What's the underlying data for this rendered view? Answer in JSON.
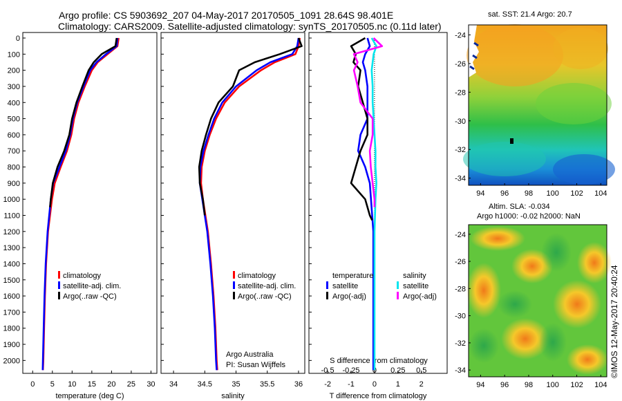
{
  "header": {
    "title_line1": "Argo profile: CS 5903692_207 04-May-2017 20170505_1091 28.64S 98.401E",
    "title_line2": "Climatology: CARS2009. Satellite-adjusted climatology: synTS_20170505.nc (0.11d later)"
  },
  "map_sst": {
    "title": "sat. SST: 21.4 Argo: 20.7",
    "xticks": [
      "94",
      "96",
      "98",
      "100",
      "102",
      "104"
    ],
    "yticks": [
      "-24",
      "-26",
      "-28",
      "-30",
      "-32",
      "-34"
    ]
  },
  "map_sla": {
    "title_line1": "Altim. SLA: -0.034",
    "title_line2": "Argo h1000: -0.02 h2000: NaN",
    "xticks": [
      "94",
      "96",
      "98",
      "100",
      "102",
      "104"
    ],
    "yticks": [
      "-24",
      "-26",
      "-28",
      "-30",
      "-32",
      "-34"
    ]
  },
  "footer": {
    "credit_line1": "Argo Australia",
    "credit_line2": "PI: Susan Wijffels",
    "stamp": "©IMOS 12-May-2017 20:40:24"
  },
  "colors": {
    "climatology": "#ff0000",
    "satellite": "#0000ff",
    "argo": "#000000",
    "salinity_satellite": "#00e5ee",
    "salinity_argo": "#ff00ff"
  },
  "chart_data": [
    {
      "type": "line",
      "xlabel": "temperature (deg C)",
      "ylabel": "",
      "xlim": [
        -2.5,
        31.5
      ],
      "ylim": [
        2080,
        0
      ],
      "xticks": [
        "0",
        "5",
        "10",
        "15",
        "20",
        "25",
        "30"
      ],
      "yticks": [
        "0",
        "100",
        "200",
        "300",
        "400",
        "500",
        "600",
        "700",
        "800",
        "900",
        "1000",
        "1100",
        "1200",
        "1300",
        "1400",
        "1500",
        "1600",
        "1700",
        "1800",
        "1900",
        "2000"
      ],
      "legend_position": "lower-right",
      "series": [
        {
          "name": "climatology",
          "color": "#ff0000",
          "depth": [
            0,
            50,
            100,
            150,
            200,
            300,
            400,
            500,
            600,
            700,
            800,
            900,
            1000,
            1200,
            1400,
            1600,
            1800,
            2000,
            2060
          ],
          "values": [
            21.8,
            21.5,
            19.0,
            16.5,
            15.0,
            13.2,
            11.6,
            10.5,
            9.8,
            8.7,
            7.1,
            5.6,
            4.9,
            3.9,
            3.4,
            3.1,
            2.9,
            2.7,
            2.6
          ]
        },
        {
          "name": "satellite-adj. clim.",
          "color": "#0000ff",
          "depth": [
            0,
            50,
            100,
            150,
            200,
            300,
            400,
            500,
            600,
            700,
            800,
            900,
            1000,
            1200,
            1400,
            1600,
            1800,
            2000,
            2060
          ],
          "values": [
            21.5,
            21.3,
            18.6,
            16.2,
            14.6,
            12.9,
            11.3,
            10.2,
            9.5,
            8.4,
            6.8,
            5.2,
            4.6,
            3.8,
            3.3,
            3.0,
            2.8,
            2.6,
            2.55
          ]
        },
        {
          "name": "Argo(..raw -QC)",
          "color": "#000000",
          "depth": [
            0,
            50,
            100,
            150,
            200,
            300,
            400,
            500,
            600,
            700,
            800,
            900,
            1000,
            1050
          ],
          "values": [
            21.3,
            21.0,
            17.5,
            15.5,
            14.2,
            12.6,
            11.1,
            10.0,
            9.3,
            8.0,
            6.3,
            5.1,
            4.6,
            4.4
          ]
        }
      ]
    },
    {
      "type": "line",
      "xlabel": "salinity",
      "ylabel": "",
      "xlim": [
        33.8,
        36.1
      ],
      "ylim": [
        2080,
        0
      ],
      "xticks": [
        "34",
        "34.5",
        "35",
        "35.5",
        "36"
      ],
      "legend_position": "lower-right",
      "series": [
        {
          "name": "climatology",
          "color": "#ff0000",
          "depth": [
            0,
            50,
            100,
            150,
            200,
            300,
            400,
            500,
            600,
            700,
            800,
            900,
            1000,
            1200,
            1400,
            1600,
            1800,
            2000,
            2060
          ],
          "values": [
            36.02,
            36.0,
            35.95,
            35.62,
            35.4,
            35.05,
            34.82,
            34.68,
            34.58,
            34.5,
            34.45,
            34.44,
            34.47,
            34.55,
            34.6,
            34.64,
            34.67,
            34.69,
            34.7
          ]
        },
        {
          "name": "satellite-adj. clim.",
          "color": "#0000ff",
          "depth": [
            0,
            50,
            100,
            150,
            200,
            300,
            400,
            500,
            600,
            700,
            800,
            900,
            1000,
            1200,
            1400,
            1600,
            1800,
            2000,
            2060
          ],
          "values": [
            36.0,
            35.98,
            35.9,
            35.55,
            35.33,
            35.0,
            34.78,
            34.65,
            34.56,
            34.48,
            34.43,
            34.42,
            34.46,
            34.54,
            34.59,
            34.63,
            34.66,
            34.68,
            34.69
          ]
        },
        {
          "name": "Argo(..raw -QC)",
          "color": "#000000",
          "depth": [
            0,
            50,
            100,
            150,
            200,
            300,
            400,
            500,
            600,
            700,
            800,
            900,
            1000,
            1100
          ],
          "values": [
            36.0,
            36.05,
            35.7,
            35.3,
            35.05,
            34.95,
            34.72,
            34.6,
            34.52,
            34.45,
            34.41,
            34.42,
            34.47,
            34.5
          ]
        }
      ]
    },
    {
      "type": "line",
      "xlabel": "T difference from climatology",
      "xlabel_top": "S difference from climatology",
      "ylabel": "",
      "xlim": [
        -2.8,
        3.1
      ],
      "ylim": [
        2080,
        0
      ],
      "xticks": [
        "-2",
        "-1",
        "0",
        "1",
        "2"
      ],
      "xticks_top": [
        "-0.5",
        "-0.25",
        "0",
        "0.25",
        "0.5"
      ],
      "legend_position": "lower-right",
      "legend_headers": [
        "temperature",
        "salinity"
      ],
      "series": [
        {
          "name": "satellite",
          "group": "temperature",
          "color": "#0000ff",
          "depth": [
            0,
            50,
            100,
            150,
            200,
            300,
            400,
            500,
            600,
            700,
            800,
            900,
            1000,
            1100,
            1200,
            1500,
            2000,
            2060
          ],
          "values": [
            -0.3,
            -0.2,
            -0.4,
            -0.5,
            -0.4,
            -0.3,
            -0.3,
            -0.3,
            -0.6,
            -0.7,
            -0.4,
            -0.2,
            -0.15,
            -0.1,
            -0.05,
            -0.05,
            -0.05,
            -0.05
          ]
        },
        {
          "name": "Argo(-adj)",
          "group": "temperature",
          "color": "#000000",
          "depth": [
            0,
            50,
            100,
            150,
            200,
            300,
            400,
            500,
            600,
            700,
            800,
            900,
            1000,
            1100,
            1130
          ],
          "values": [
            -0.4,
            -1.0,
            -0.8,
            -0.9,
            -0.6,
            -0.7,
            -0.5,
            -0.3,
            -0.3,
            -0.6,
            -0.8,
            -1.0,
            -0.4,
            -0.2,
            -0.1
          ]
        },
        {
          "name": "satellite",
          "group": "salinity",
          "color": "#00e5ee",
          "depth": [
            0,
            50,
            100,
            150,
            200,
            300,
            400,
            500,
            600,
            700,
            800,
            900,
            1000,
            1200,
            1500,
            2000,
            2060
          ],
          "values": [
            -0.03,
            0.02,
            -0.01,
            -0.02,
            -0.03,
            -0.02,
            -0.02,
            -0.01,
            0.0,
            0.01,
            0.01,
            0.02,
            0.01,
            0.0,
            0.0,
            0.0,
            0.0
          ]
        },
        {
          "name": "Argo(-adj)",
          "group": "salinity",
          "color": "#ff00ff",
          "depth": [
            0,
            50,
            100,
            150,
            200,
            300,
            400,
            500,
            600,
            700,
            800,
            900,
            1000,
            1050
          ],
          "values": [
            -0.01,
            0.08,
            -0.22,
            -0.18,
            -0.22,
            -0.18,
            -0.15,
            -0.02,
            -0.02,
            -0.05,
            -0.04,
            -0.02,
            0.0,
            0.0
          ]
        }
      ]
    }
  ]
}
